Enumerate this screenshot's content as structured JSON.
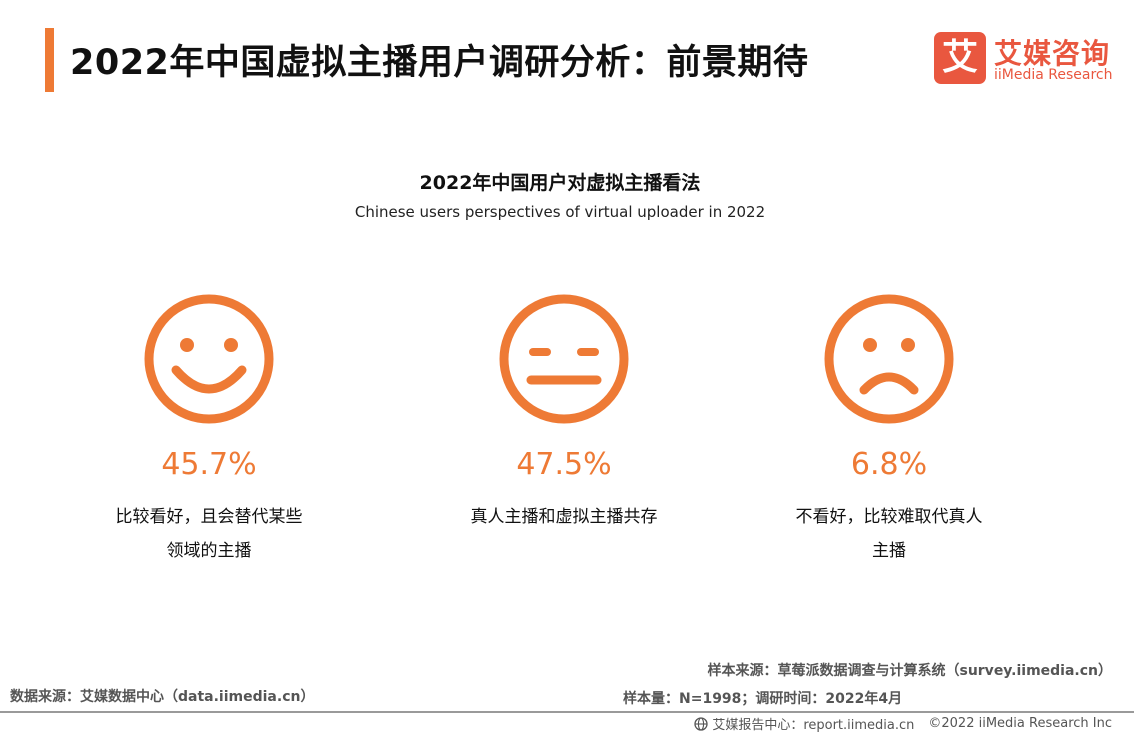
{
  "header": {
    "title": "2022年中国虚拟主播用户调研分析：前景期待",
    "logo_mark": "艾",
    "logo_cn": "艾媒咨询",
    "logo_en": "iiMedia Research"
  },
  "chart_data": {
    "type": "table",
    "title": "2022年中国用户对虚拟主播看法",
    "subtitle": "Chinese users perspectives of virtual uploader in 2022",
    "unit": "%",
    "categories": [
      "比较看好，且会替代某些领域的主播",
      "真人主播和虚拟主播共存",
      "不看好，比较难取代真人主播"
    ],
    "values": [
      45.7,
      47.5,
      6.8
    ],
    "items": [
      {
        "icon": "smiling-face-icon",
        "value": "45.7%",
        "desc_lines": [
          "比较看好，且会替代某些",
          "领域的主播"
        ]
      },
      {
        "icon": "neutral-face-icon",
        "value": "47.5%",
        "desc_lines": [
          "真人主播和虚拟主播共存"
        ]
      },
      {
        "icon": "sad-face-icon",
        "value": "6.8%",
        "desc_lines": [
          "不看好，比较难取代真人",
          "主播"
        ]
      }
    ],
    "accent_color": "#ee7a35"
  },
  "footer": {
    "data_source": "数据来源：艾媒数据中心（data.iimedia.cn）",
    "sample_source": "样本来源：草莓派数据调查与计算系统（survey.iimedia.cn）",
    "sample_size": "样本量：N=1998；调研时间：2022年4月",
    "report_center": "艾媒报告中心：report.iimedia.cn",
    "copyright": "©2022 iiMedia Research Inc"
  }
}
